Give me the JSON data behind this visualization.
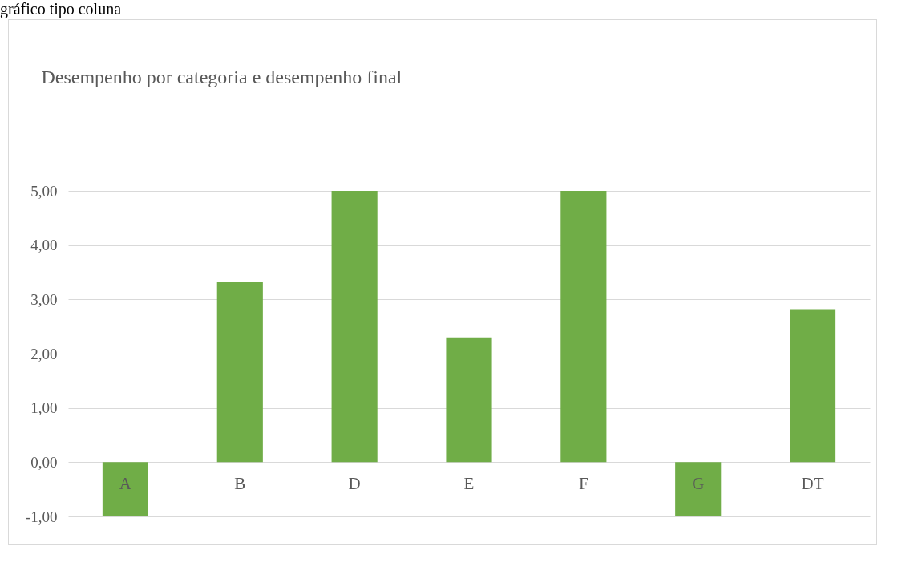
{
  "chart_data": {
    "type": "bar",
    "title": "Desempenho por categoria e desempenho final",
    "annotations": [
      "gráfico tipo coluna"
    ],
    "categories": [
      "A",
      "B",
      "D",
      "E",
      "F",
      "G",
      "DT"
    ],
    "values": [
      -1,
      3.32,
      5,
      2.3,
      5,
      -1,
      2.82
    ],
    "color": "#70ad47",
    "ylim": [
      -1,
      5
    ],
    "yticks": [
      {
        "value": -1,
        "label": "-1,00"
      },
      {
        "value": 0,
        "label": "0,00"
      },
      {
        "value": 1,
        "label": "1,00"
      },
      {
        "value": 2,
        "label": "2,00"
      },
      {
        "value": 3,
        "label": "3,00"
      },
      {
        "value": 4,
        "label": "4,00"
      },
      {
        "value": 5,
        "label": "5,00"
      }
    ],
    "grid": "y"
  }
}
